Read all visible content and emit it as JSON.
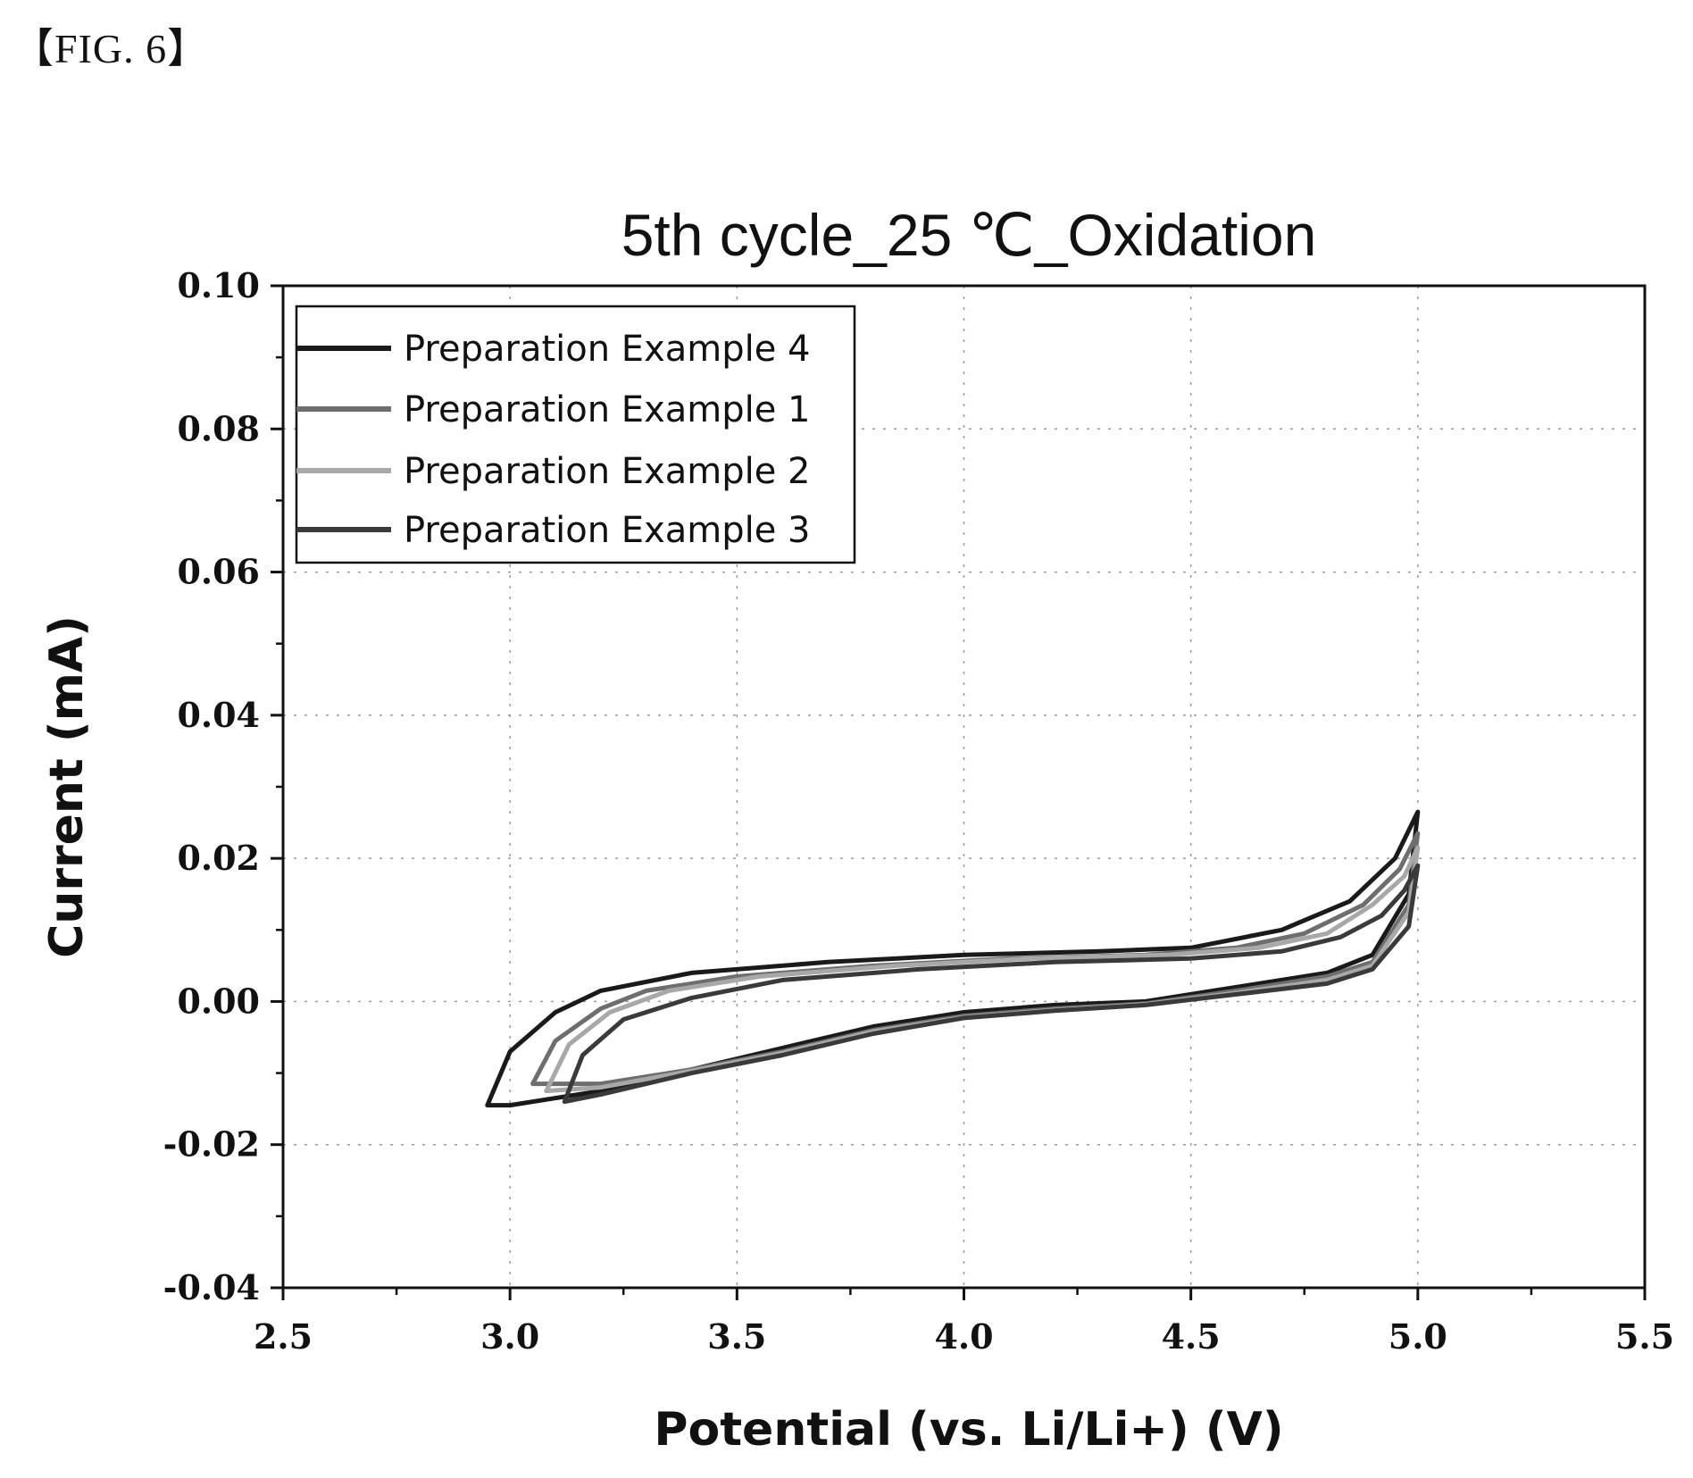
{
  "figure_label": "【FIG. 6】",
  "chart_data": {
    "type": "line",
    "title": "5th cycle_25 ℃_Oxidation",
    "xlabel": "Potential (vs. Li/Li+) (V)",
    "ylabel": "Current (mA)",
    "xlim": [
      2.5,
      5.5
    ],
    "ylim": [
      -0.04,
      0.1
    ],
    "x_ticks": [
      "2.5",
      "3.0",
      "3.5",
      "4.0",
      "4.5",
      "5.0",
      "5.5"
    ],
    "y_ticks": [
      "-0.04",
      "-0.02",
      "0.00",
      "0.02",
      "0.04",
      "0.06",
      "0.08",
      "0.10"
    ],
    "grid": true,
    "legend_position": "top-left",
    "series": [
      {
        "name": "Preparation Example 4",
        "color": "#1a1a1a",
        "upper": [
          [
            2.95,
            -0.0145
          ],
          [
            3.0,
            -0.007
          ],
          [
            3.1,
            -0.0015
          ],
          [
            3.2,
            0.0015
          ],
          [
            3.4,
            0.004
          ],
          [
            3.7,
            0.0055
          ],
          [
            4.0,
            0.0065
          ],
          [
            4.3,
            0.007
          ],
          [
            4.5,
            0.0075
          ],
          [
            4.7,
            0.01
          ],
          [
            4.85,
            0.014
          ],
          [
            4.95,
            0.02
          ],
          [
            5.0,
            0.0265
          ]
        ],
        "lower": [
          [
            5.0,
            0.0265
          ],
          [
            4.98,
            0.015
          ],
          [
            4.9,
            0.0065
          ],
          [
            4.8,
            0.004
          ],
          [
            4.6,
            0.002
          ],
          [
            4.4,
            0.0
          ],
          [
            4.2,
            -0.0005
          ],
          [
            4.0,
            -0.0015
          ],
          [
            3.8,
            -0.0035
          ],
          [
            3.6,
            -0.0065
          ],
          [
            3.4,
            -0.0095
          ],
          [
            3.2,
            -0.0125
          ],
          [
            3.0,
            -0.0145
          ],
          [
            2.95,
            -0.0145
          ]
        ]
      },
      {
        "name": "Preparation Example 1",
        "color": "#6e6e6e",
        "upper": [
          [
            3.05,
            -0.0115
          ],
          [
            3.1,
            -0.0055
          ],
          [
            3.2,
            -0.001
          ],
          [
            3.3,
            0.0015
          ],
          [
            3.5,
            0.0035
          ],
          [
            3.8,
            0.005
          ],
          [
            4.1,
            0.006
          ],
          [
            4.4,
            0.0065
          ],
          [
            4.6,
            0.0075
          ],
          [
            4.75,
            0.0095
          ],
          [
            4.88,
            0.0135
          ],
          [
            4.96,
            0.0185
          ],
          [
            5.0,
            0.0235
          ]
        ],
        "lower": [
          [
            5.0,
            0.0235
          ],
          [
            4.98,
            0.0135
          ],
          [
            4.9,
            0.0055
          ],
          [
            4.8,
            0.0035
          ],
          [
            4.6,
            0.0015
          ],
          [
            4.4,
            -0.0003
          ],
          [
            4.2,
            -0.001
          ],
          [
            4.0,
            -0.002
          ],
          [
            3.8,
            -0.004
          ],
          [
            3.6,
            -0.007
          ],
          [
            3.4,
            -0.0095
          ],
          [
            3.2,
            -0.0115
          ],
          [
            3.05,
            -0.0115
          ]
        ]
      },
      {
        "name": "Preparation Example 2",
        "color": "#a8a8a8",
        "upper": [
          [
            3.08,
            -0.0125
          ],
          [
            3.13,
            -0.006
          ],
          [
            3.22,
            -0.0015
          ],
          [
            3.35,
            0.0015
          ],
          [
            3.55,
            0.0035
          ],
          [
            3.85,
            0.005
          ],
          [
            4.15,
            0.006
          ],
          [
            4.45,
            0.0065
          ],
          [
            4.65,
            0.0075
          ],
          [
            4.8,
            0.0095
          ],
          [
            4.9,
            0.0135
          ],
          [
            4.97,
            0.0175
          ],
          [
            5.0,
            0.0215
          ]
        ],
        "lower": [
          [
            5.0,
            0.0215
          ],
          [
            4.98,
            0.0125
          ],
          [
            4.9,
            0.005
          ],
          [
            4.8,
            0.003
          ],
          [
            4.6,
            0.0012
          ],
          [
            4.4,
            -0.0004
          ],
          [
            4.2,
            -0.0012
          ],
          [
            4.0,
            -0.0022
          ],
          [
            3.8,
            -0.0042
          ],
          [
            3.6,
            -0.0072
          ],
          [
            3.4,
            -0.0097
          ],
          [
            3.2,
            -0.012
          ],
          [
            3.08,
            -0.0125
          ]
        ]
      },
      {
        "name": "Preparation Example 3",
        "color": "#3a3a3a",
        "upper": [
          [
            3.12,
            -0.014
          ],
          [
            3.16,
            -0.0075
          ],
          [
            3.25,
            -0.0025
          ],
          [
            3.4,
            0.0005
          ],
          [
            3.6,
            0.003
          ],
          [
            3.9,
            0.0045
          ],
          [
            4.2,
            0.0055
          ],
          [
            4.5,
            0.006
          ],
          [
            4.7,
            0.007
          ],
          [
            4.83,
            0.009
          ],
          [
            4.92,
            0.012
          ],
          [
            4.97,
            0.0155
          ],
          [
            5.0,
            0.019
          ]
        ],
        "lower": [
          [
            5.0,
            0.019
          ],
          [
            4.98,
            0.0105
          ],
          [
            4.9,
            0.0045
          ],
          [
            4.8,
            0.0025
          ],
          [
            4.6,
            0.001
          ],
          [
            4.4,
            -0.0005
          ],
          [
            4.2,
            -0.0013
          ],
          [
            4.0,
            -0.0023
          ],
          [
            3.8,
            -0.0045
          ],
          [
            3.6,
            -0.0075
          ],
          [
            3.4,
            -0.01
          ],
          [
            3.2,
            -0.013
          ],
          [
            3.12,
            -0.014
          ]
        ]
      }
    ]
  }
}
